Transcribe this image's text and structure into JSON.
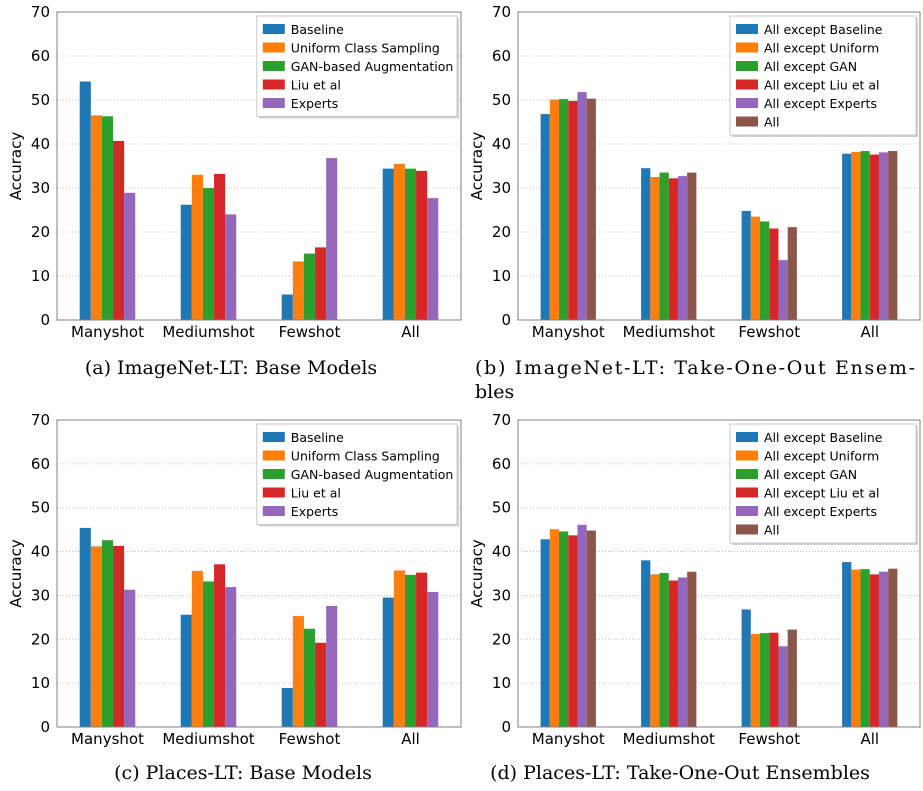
{
  "chart_data": [
    {
      "type": "bar",
      "caption": "(a) ImageNet-LT: Base Models",
      "ylabel": "Accuracy",
      "ylim": [
        0,
        70
      ],
      "yticks": [
        0,
        10,
        20,
        30,
        40,
        50,
        60,
        70
      ],
      "categories": [
        "Manyshot",
        "Mediumshot",
        "Fewshot",
        "All"
      ],
      "legend_position": "top-right",
      "grid": "horizontal",
      "series": [
        {
          "name": "Baseline",
          "color": "#1f77b4",
          "values": [
            54.2,
            26.2,
            5.8,
            34.4
          ]
        },
        {
          "name": "Uniform Class Sampling",
          "color": "#ff7f0e",
          "values": [
            46.5,
            33.0,
            13.3,
            35.5
          ]
        },
        {
          "name": "GAN-based Augmentation",
          "color": "#2ca02c",
          "values": [
            46.3,
            30.0,
            15.1,
            34.4
          ]
        },
        {
          "name": "Liu et al",
          "color": "#d62728",
          "values": [
            40.7,
            33.2,
            16.5,
            33.9
          ]
        },
        {
          "name": "Experts",
          "color": "#9467bd",
          "values": [
            28.9,
            24.0,
            36.8,
            27.7
          ]
        }
      ]
    },
    {
      "type": "bar",
      "caption": "(b) ImageNet-LT: Take-One-Out Ensembles",
      "ylabel": "Accuracy",
      "ylim": [
        0,
        70
      ],
      "yticks": [
        0,
        10,
        20,
        30,
        40,
        50,
        60,
        70
      ],
      "categories": [
        "Manyshot",
        "Mediumshot",
        "Fewshot",
        "All"
      ],
      "legend_position": "top-right",
      "grid": "horizontal",
      "series": [
        {
          "name": "All except Baseline",
          "color": "#1f77b4",
          "values": [
            46.8,
            34.5,
            24.8,
            37.8
          ]
        },
        {
          "name": "All except Uniform",
          "color": "#ff7f0e",
          "values": [
            50.1,
            32.5,
            23.5,
            38.2
          ]
        },
        {
          "name": "All except GAN",
          "color": "#2ca02c",
          "values": [
            50.2,
            33.5,
            22.4,
            38.4
          ]
        },
        {
          "name": "All except Liu et al",
          "color": "#d62728",
          "values": [
            49.8,
            32.2,
            20.8,
            37.6
          ]
        },
        {
          "name": "All except Experts",
          "color": "#9467bd",
          "values": [
            51.8,
            32.7,
            13.6,
            38.1
          ]
        },
        {
          "name": "All",
          "color": "#8c564b",
          "values": [
            50.3,
            33.5,
            21.1,
            38.4
          ]
        }
      ]
    },
    {
      "type": "bar",
      "caption": "(c) Places-LT: Base Models",
      "ylabel": "Accuracy",
      "ylim": [
        0,
        70
      ],
      "yticks": [
        0,
        10,
        20,
        30,
        40,
        50,
        60,
        70
      ],
      "categories": [
        "Manyshot",
        "Mediumshot",
        "Fewshot",
        "All"
      ],
      "legend_position": "top-right",
      "grid": "horizontal",
      "series": [
        {
          "name": "Baseline",
          "color": "#1f77b4",
          "values": [
            45.4,
            25.6,
            8.9,
            29.5
          ]
        },
        {
          "name": "Uniform Class Sampling",
          "color": "#ff7f0e",
          "values": [
            41.2,
            35.6,
            25.3,
            35.7
          ]
        },
        {
          "name": "GAN-based Augmentation",
          "color": "#2ca02c",
          "values": [
            42.6,
            33.2,
            22.4,
            34.7
          ]
        },
        {
          "name": "Liu et al",
          "color": "#d62728",
          "values": [
            41.3,
            37.1,
            19.2,
            35.2
          ]
        },
        {
          "name": "Experts",
          "color": "#9467bd",
          "values": [
            31.3,
            31.9,
            27.6,
            30.8
          ]
        }
      ]
    },
    {
      "type": "bar",
      "caption": "(d) Places-LT: Take-One-Out Ensembles",
      "ylabel": "Accuracy",
      "ylim": [
        0,
        70
      ],
      "yticks": [
        0,
        10,
        20,
        30,
        40,
        50,
        60,
        70
      ],
      "categories": [
        "Manyshot",
        "Mediumshot",
        "Fewshot",
        "All"
      ],
      "legend_position": "top-right",
      "grid": "horizontal",
      "series": [
        {
          "name": "All except Baseline",
          "color": "#1f77b4",
          "values": [
            42.8,
            38.0,
            26.8,
            37.6
          ]
        },
        {
          "name": "All except Uniform",
          "color": "#ff7f0e",
          "values": [
            45.1,
            34.8,
            21.2,
            35.9
          ]
        },
        {
          "name": "All except GAN",
          "color": "#2ca02c",
          "values": [
            44.6,
            35.1,
            21.4,
            36.0
          ]
        },
        {
          "name": "All except Liu et al",
          "color": "#d62728",
          "values": [
            43.7,
            33.4,
            21.5,
            34.8
          ]
        },
        {
          "name": "All except Experts",
          "color": "#9467bd",
          "values": [
            46.1,
            34.1,
            18.4,
            35.4
          ]
        },
        {
          "name": "All",
          "color": "#8c564b",
          "values": [
            44.8,
            35.4,
            22.2,
            36.1
          ]
        }
      ]
    }
  ]
}
